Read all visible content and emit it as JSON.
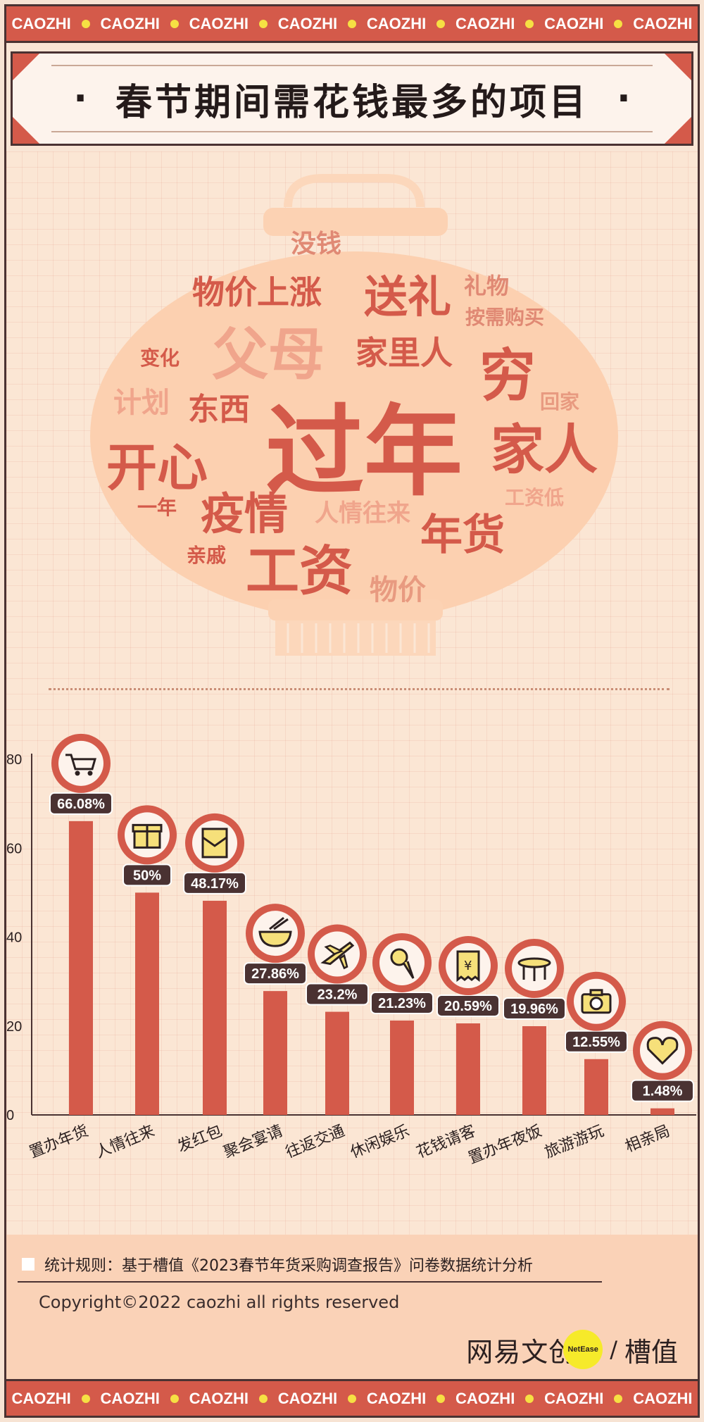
{
  "banner": {
    "text": "CAOZHI",
    "repeat": 8
  },
  "title": "春节期间需花钱最多的项目",
  "title_dot": "·",
  "wordcloud": [
    {
      "text": "没钱",
      "color": "#e08974",
      "size": 36
    },
    {
      "text": "物价上涨",
      "color": "#d45a4a",
      "size": 46
    },
    {
      "text": "送礼",
      "color": "#d45a4a",
      "size": 62
    },
    {
      "text": "礼物",
      "color": "#e08974",
      "size": 32
    },
    {
      "text": "按需购买",
      "color": "#e08974",
      "size": 28
    },
    {
      "text": "父母",
      "color": "#f0a58c",
      "size": 80
    },
    {
      "text": "家里人",
      "color": "#d45a4a",
      "size": 46
    },
    {
      "text": "穷",
      "color": "#d45a4a",
      "size": 80
    },
    {
      "text": "变化",
      "color": "#d45a4a",
      "size": 28
    },
    {
      "text": "计划",
      "color": "#f0a58c",
      "size": 40
    },
    {
      "text": "东西",
      "color": "#d45a4a",
      "size": 44
    },
    {
      "text": "回家",
      "color": "#e89a80",
      "size": 28
    },
    {
      "text": "过年",
      "color": "#d45a4a",
      "size": 140
    },
    {
      "text": "开心",
      "color": "#d45a4a",
      "size": 72
    },
    {
      "text": "家人",
      "color": "#d45a4a",
      "size": 76
    },
    {
      "text": "工资低",
      "color": "#f0a58c",
      "size": 28
    },
    {
      "text": "一年",
      "color": "#d45a4a",
      "size": 28
    },
    {
      "text": "疫情",
      "color": "#d45a4a",
      "size": 62
    },
    {
      "text": "人情往来",
      "color": "#f0a58c",
      "size": 34
    },
    {
      "text": "年货",
      "color": "#d45a4a",
      "size": 60
    },
    {
      "text": "亲戚",
      "color": "#d45a4a",
      "size": 28
    },
    {
      "text": "工资",
      "color": "#d45a4a",
      "size": 76
    },
    {
      "text": "物价",
      "color": "#e89a80",
      "size": 40
    }
  ],
  "chart_data": {
    "type": "bar",
    "categories": [
      "置办年货",
      "人情往来",
      "发红包",
      "聚会宴请",
      "往返交通",
      "休闲娱乐",
      "花钱请客",
      "置办年夜饭",
      "旅游游玩",
      "相亲局"
    ],
    "values": [
      66.08,
      50,
      48.17,
      27.86,
      23.2,
      21.23,
      20.59,
      19.96,
      12.55,
      1.48
    ],
    "labels": [
      "66.08%",
      "50%",
      "48.17%",
      "27.86%",
      "23.2%",
      "21.23%",
      "20.59%",
      "19.96%",
      "12.55%",
      "1.48%"
    ],
    "icons": [
      "cart-icon",
      "gift-icon",
      "red-envelope-icon",
      "bowl-icon",
      "plane-icon",
      "ice-cream-icon",
      "receipt-icon",
      "table-icon",
      "camera-icon",
      "heart-icon"
    ],
    "yticks": [
      0,
      20,
      40,
      60,
      80
    ],
    "ylim": [
      0,
      80
    ],
    "bar_color": "#d45a4a",
    "label_bg": "#4a3232"
  },
  "footer": {
    "note": "统计规则：基于槽值《2023春节年货采购调查报告》问卷数据统计分析",
    "copyright": "Copyright©2022 caozhi all rights reserved",
    "logo_left": "网易文创",
    "logo_badge": "NetEase",
    "logo_slash": "/",
    "logo_right": "槽值"
  }
}
